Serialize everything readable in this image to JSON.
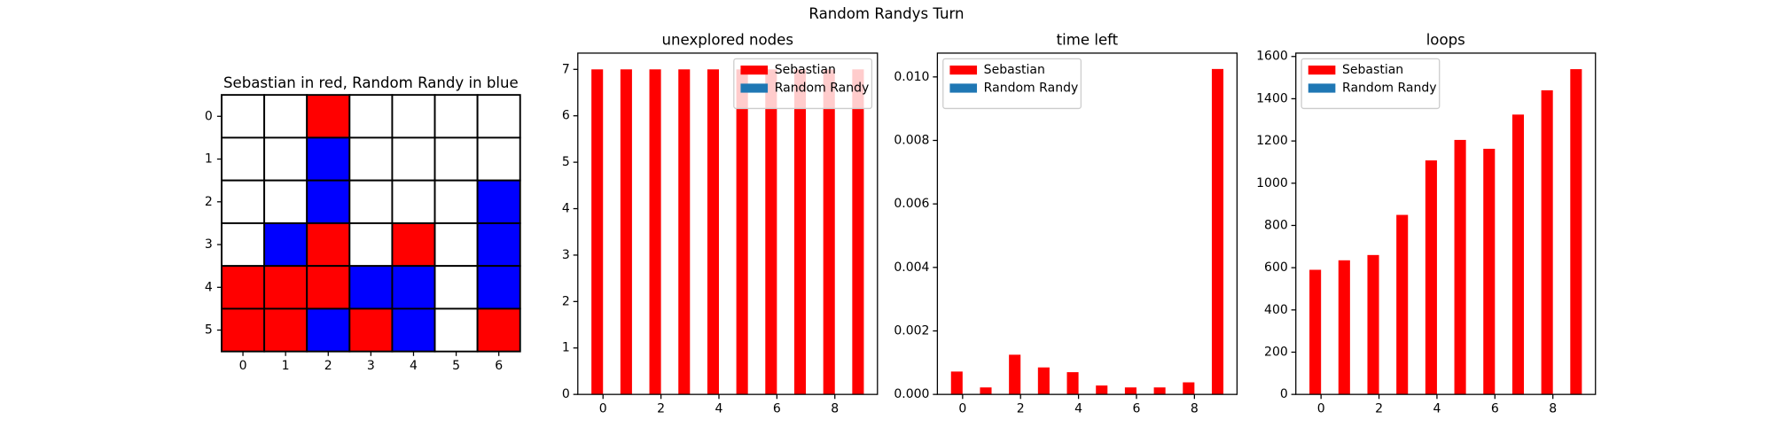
{
  "title": "Random Randys Turn",
  "chart_data": [
    {
      "type": "grid",
      "title": "Sebastian in red, Random Randy in blue",
      "cells": [
        [
          "white",
          "white",
          "red",
          "white",
          "white",
          "white",
          "white"
        ],
        [
          "white",
          "white",
          "blue",
          "white",
          "white",
          "white",
          "white"
        ],
        [
          "white",
          "white",
          "blue",
          "white",
          "white",
          "white",
          "blue"
        ],
        [
          "white",
          "blue",
          "red",
          "white",
          "red",
          "white",
          "blue"
        ],
        [
          "red",
          "red",
          "red",
          "blue",
          "blue",
          "white",
          "blue"
        ],
        [
          "red",
          "red",
          "blue",
          "red",
          "blue",
          "white",
          "red"
        ]
      ],
      "xticks": [
        0,
        1,
        2,
        3,
        4,
        5,
        6
      ],
      "yticks": [
        0,
        1,
        2,
        3,
        4,
        5
      ]
    },
    {
      "type": "bar",
      "title": "unexplored nodes",
      "legend": "upper right",
      "categories": [
        0,
        1,
        2,
        3,
        4,
        5,
        6,
        7,
        8,
        9
      ],
      "series": [
        {
          "name": "Sebastian",
          "color": "#ff0000",
          "values": [
            7,
            7,
            7,
            7,
            7,
            7,
            7,
            7,
            7,
            7
          ]
        },
        {
          "name": "Random Randy",
          "color": "#1f77b4",
          "values": [
            0,
            0,
            0,
            0,
            0,
            0,
            0,
            0,
            0,
            0
          ]
        }
      ],
      "xlim": [
        -0.87,
        9.47
      ],
      "xticks": [
        0,
        2,
        4,
        6,
        8
      ],
      "ylim": [
        0,
        7.35
      ],
      "yticks": [
        0,
        1,
        2,
        3,
        4,
        5,
        6,
        7
      ]
    },
    {
      "type": "bar",
      "title": "time left",
      "legend": "upper left",
      "categories": [
        0,
        1,
        2,
        3,
        4,
        5,
        6,
        7,
        8,
        9
      ],
      "series": [
        {
          "name": "Sebastian",
          "color": "#ff0000",
          "values": [
            0.00072,
            0.00022,
            0.00125,
            0.00085,
            0.0007,
            0.00028,
            0.00022,
            0.00022,
            0.00038,
            0.01025
          ]
        },
        {
          "name": "Random Randy",
          "color": "#1f77b4",
          "values": [
            0,
            0,
            0,
            0,
            0,
            0,
            0,
            0,
            0,
            0
          ]
        }
      ],
      "xlim": [
        -0.87,
        9.47
      ],
      "xticks": [
        0,
        2,
        4,
        6,
        8
      ],
      "ylim": [
        0,
        0.01075
      ],
      "yticks": [
        {
          "value": 0,
          "label": "0.000"
        },
        {
          "value": 0.002,
          "label": "0.002"
        },
        {
          "value": 0.004,
          "label": "0.004"
        },
        {
          "value": 0.006,
          "label": "0.006"
        },
        {
          "value": 0.008,
          "label": "0.008"
        },
        {
          "value": 0.01,
          "label": "0.010"
        }
      ]
    },
    {
      "type": "bar",
      "title": "loops",
      "legend": "upper left",
      "categories": [
        0,
        1,
        2,
        3,
        4,
        5,
        6,
        7,
        8,
        9
      ],
      "series": [
        {
          "name": "Sebastian",
          "color": "#ff0000",
          "values": [
            590,
            635,
            660,
            850,
            1108,
            1205,
            1163,
            1325,
            1440,
            1540
          ]
        },
        {
          "name": "Random Randy",
          "color": "#1f77b4",
          "values": [
            0,
            0,
            0,
            0,
            0,
            0,
            0,
            0,
            0,
            0
          ]
        }
      ],
      "xlim": [
        -0.87,
        9.47
      ],
      "xticks": [
        0,
        2,
        4,
        6,
        8
      ],
      "ylim": [
        0,
        1616
      ],
      "yticks": [
        0,
        200,
        400,
        600,
        800,
        1000,
        1200,
        1400,
        1600
      ]
    }
  ]
}
